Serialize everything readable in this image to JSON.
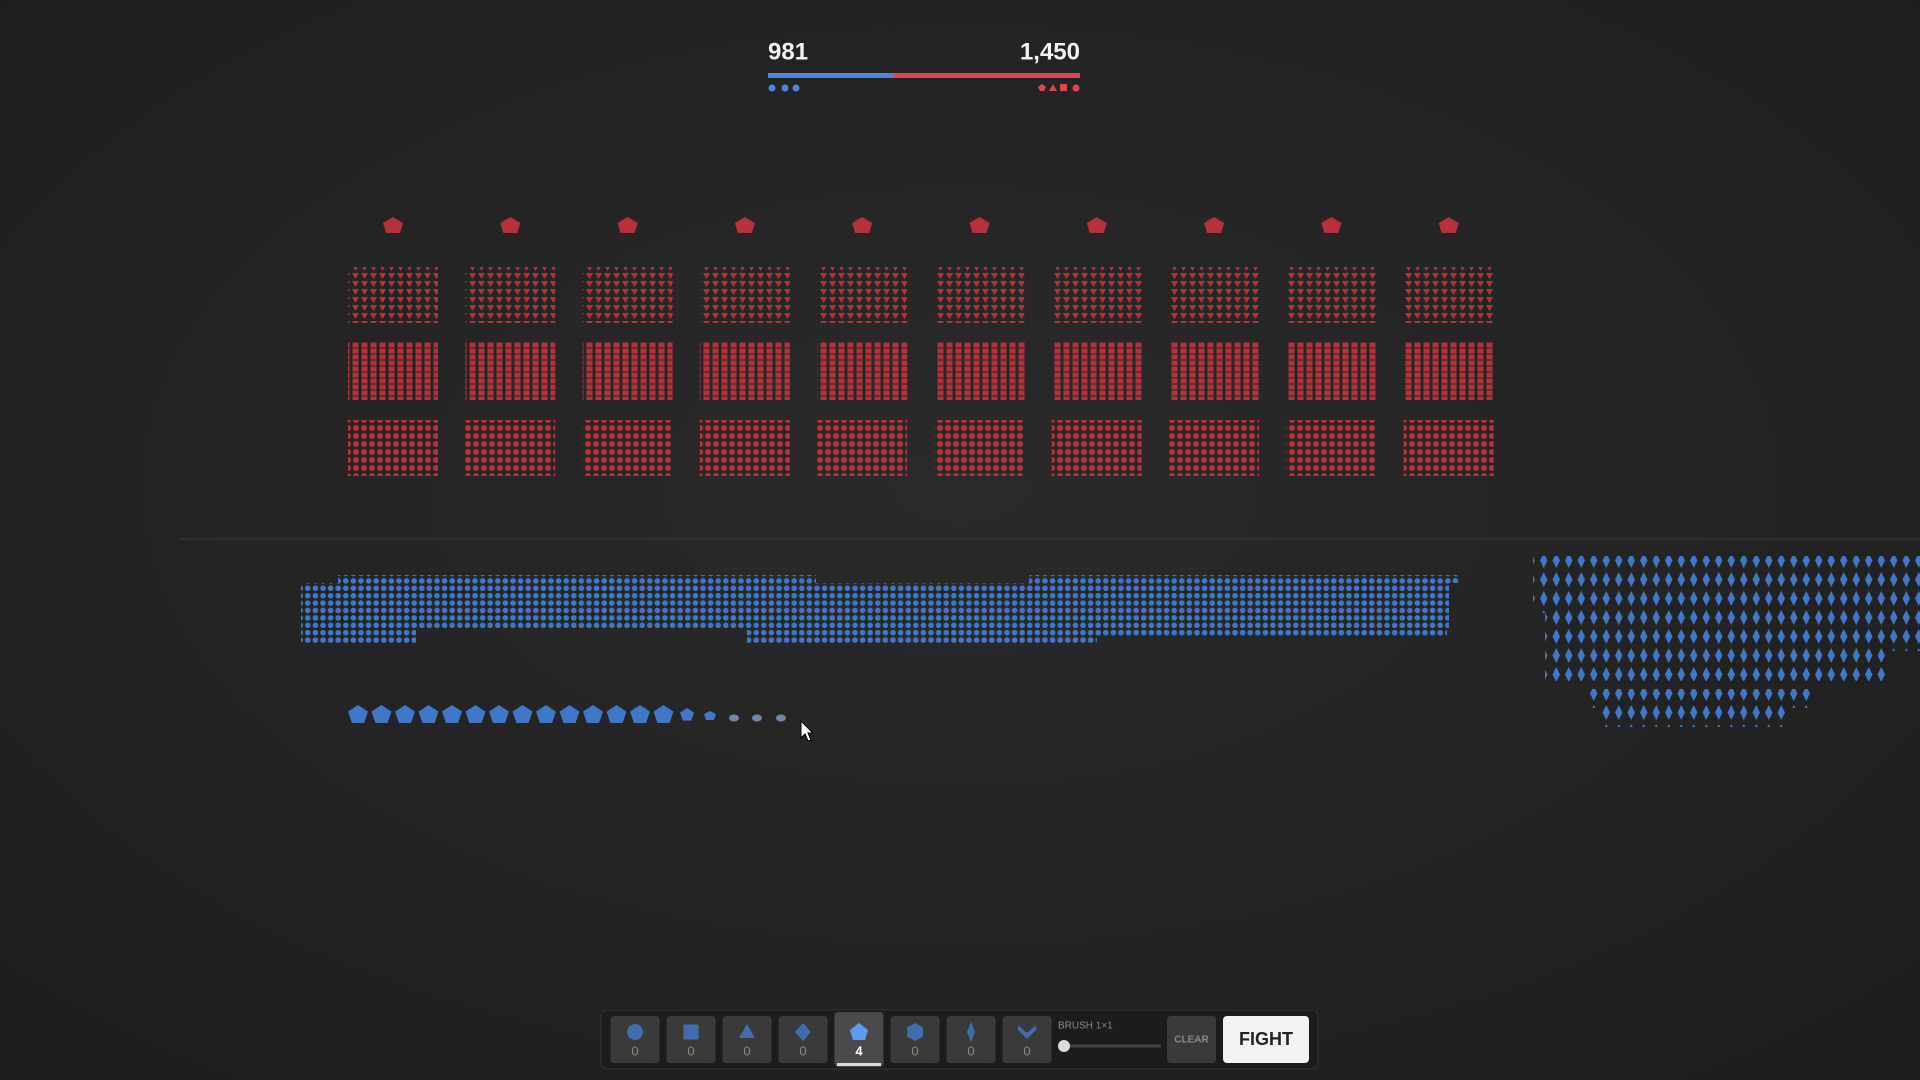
{
  "score": {
    "blue": "981",
    "red": "1,450"
  },
  "toolbar": {
    "slots": [
      {
        "count": 0
      },
      {
        "count": 0
      },
      {
        "count": 0
      },
      {
        "count": 0
      },
      {
        "count": 4
      },
      {
        "count": 0
      },
      {
        "count": 0
      },
      {
        "count": 0
      }
    ],
    "brush_label": "BRUSH 1×1",
    "clear": "CLEAR",
    "fight": "FIGHT"
  }
}
